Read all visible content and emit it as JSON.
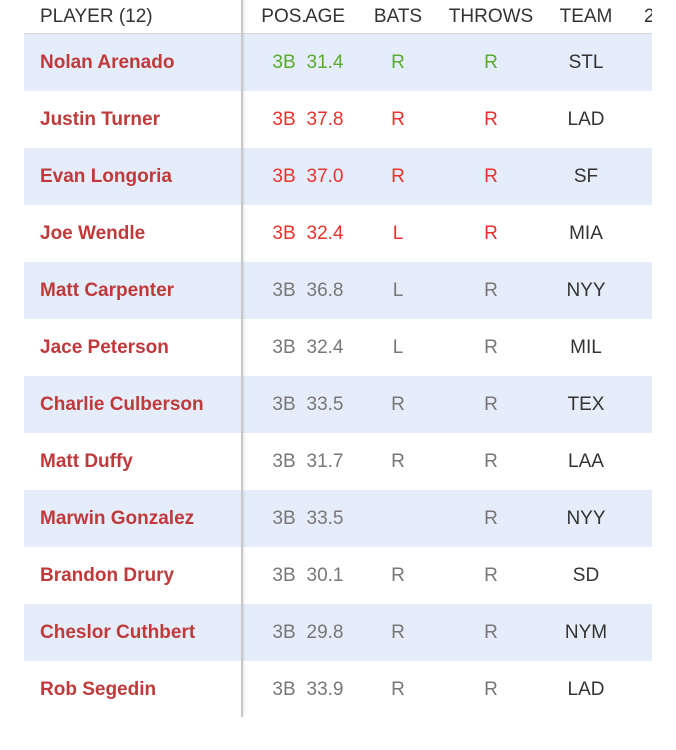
{
  "header": {
    "player": "PLAYER (12)",
    "pos": "POS.",
    "age": "AGE",
    "bats": "BATS",
    "throws": "THROWS",
    "team": "TEAM",
    "extra": "2"
  },
  "colors": {
    "good": "#5aab2e",
    "bad": "#e8322c",
    "neutral": "#777777",
    "player_name": "#c0393b",
    "row_shade": "#e4edf9"
  },
  "rows": [
    {
      "name": "Nolan Arenado",
      "pos": "3B",
      "age": "31.4",
      "bats": "R",
      "throws": "R",
      "team": "STL",
      "status": "good"
    },
    {
      "name": "Justin Turner",
      "pos": "3B",
      "age": "37.8",
      "bats": "R",
      "throws": "R",
      "team": "LAD",
      "status": "bad"
    },
    {
      "name": "Evan Longoria",
      "pos": "3B",
      "age": "37.0",
      "bats": "R",
      "throws": "R",
      "team": "SF",
      "status": "bad"
    },
    {
      "name": "Joe Wendle",
      "pos": "3B",
      "age": "32.4",
      "bats": "L",
      "throws": "R",
      "team": "MIA",
      "status": "bad"
    },
    {
      "name": "Matt Carpenter",
      "pos": "3B",
      "age": "36.8",
      "bats": "L",
      "throws": "R",
      "team": "NYY",
      "status": "neutral"
    },
    {
      "name": "Jace Peterson",
      "pos": "3B",
      "age": "32.4",
      "bats": "L",
      "throws": "R",
      "team": "MIL",
      "status": "neutral"
    },
    {
      "name": "Charlie Culberson",
      "pos": "3B",
      "age": "33.5",
      "bats": "R",
      "throws": "R",
      "team": "TEX",
      "status": "neutral"
    },
    {
      "name": "Matt Duffy",
      "pos": "3B",
      "age": "31.7",
      "bats": "R",
      "throws": "R",
      "team": "LAA",
      "status": "neutral"
    },
    {
      "name": "Marwin Gonzalez",
      "pos": "3B",
      "age": "33.5",
      "bats": "",
      "throws": "R",
      "team": "NYY",
      "status": "neutral"
    },
    {
      "name": "Brandon Drury",
      "pos": "3B",
      "age": "30.1",
      "bats": "R",
      "throws": "R",
      "team": "SD",
      "status": "neutral"
    },
    {
      "name": "Cheslor Cuthbert",
      "pos": "3B",
      "age": "29.8",
      "bats": "R",
      "throws": "R",
      "team": "NYM",
      "status": "neutral"
    },
    {
      "name": "Rob Segedin",
      "pos": "3B",
      "age": "33.9",
      "bats": "R",
      "throws": "R",
      "team": "LAD",
      "status": "neutral"
    }
  ]
}
